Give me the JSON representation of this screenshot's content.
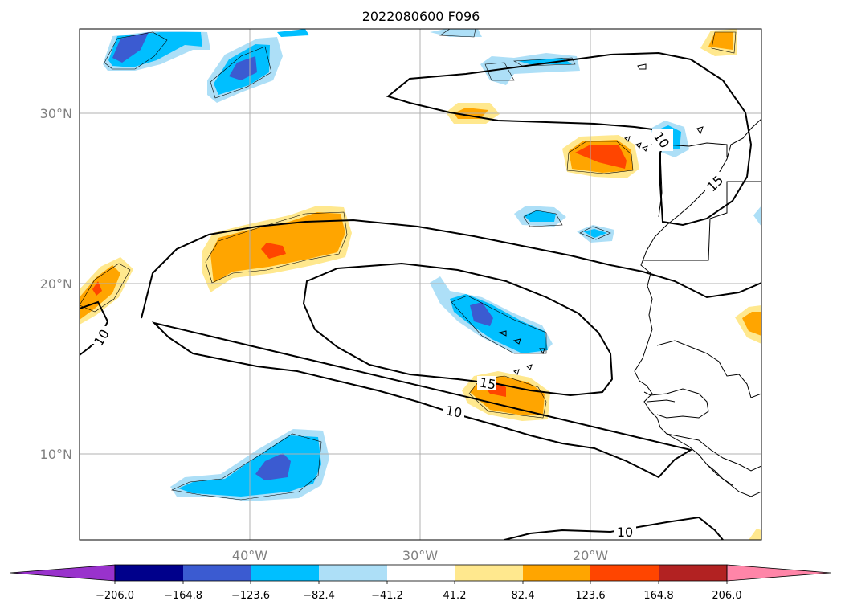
{
  "title": "2022080600 F096",
  "colors": {
    "bin_neg_206_plus": "#9932CC",
    "bin_neg_206_neg_164": "#00008B",
    "bin_neg_164_neg_123": "#3B5BD1",
    "bin_neg_123_neg_82": "#00BFFF",
    "bin_neg_82_neg_41": "#ADDFF7",
    "bin_neutral": "#FFFFFF",
    "bin_41_82": "#FFE88E",
    "bin_82_123": "#FFA500",
    "bin_123_164": "#FF4500",
    "bin_164_206": "#B22222",
    "bin_206_plus": "#FF85A8"
  },
  "axes": {
    "lon_ticks": [
      "40°W",
      "30°W",
      "20°W"
    ],
    "lat_ticks": [
      "30°N",
      "20°N",
      "10°N"
    ]
  },
  "colorbar": {
    "ticks": [
      "−206.0",
      "−164.8",
      "−123.6",
      "−82.4",
      "−41.2",
      "41.2",
      "82.4",
      "123.6",
      "164.8",
      "206.0"
    ]
  },
  "contour_labels": {
    "label_10_west": "10",
    "label_15_mid": "15",
    "label_10_mid": "10",
    "label_10_south": "10",
    "label_10_ne": "10",
    "label_15_ne": "15"
  }
}
